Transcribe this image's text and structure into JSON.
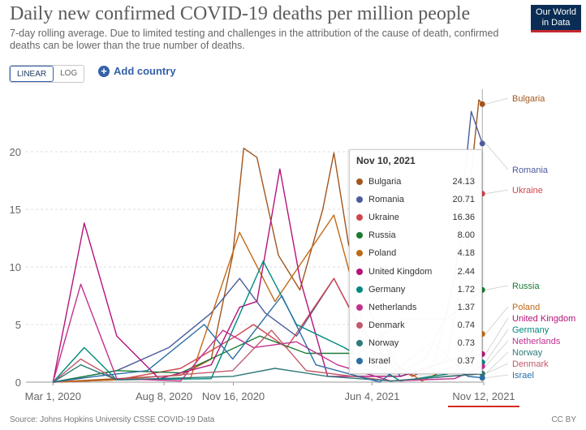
{
  "title": "Daily new confirmed COVID-19 deaths per million people",
  "subtitle": "7-day rolling average. Due to limited testing and challenges in the attribution of the cause of death, confirmed deaths can be lower than the true number of deaths.",
  "logo": {
    "line1": "Our World",
    "line2": "in Data"
  },
  "controls": {
    "linear": "LINEAR",
    "log": "LOG",
    "add_country": "Add country"
  },
  "footer": {
    "source": "Source: Johns Hopkins University CSSE COVID-19 Data",
    "license": "CC BY"
  },
  "tooltip": {
    "date": "Nov 10, 2021",
    "rows": [
      {
        "name": "Bulgaria",
        "value": "24.13",
        "color": "#a2561e"
      },
      {
        "name": "Romania",
        "value": "20.71",
        "color": "#4c5c9c"
      },
      {
        "name": "Ukraine",
        "value": "16.36",
        "color": "#d0464d"
      },
      {
        "name": "Russia",
        "value": "8.00",
        "color": "#1a7c34"
      },
      {
        "name": "Poland",
        "value": "4.18",
        "color": "#c26918"
      },
      {
        "name": "United Kingdom",
        "value": "2.44",
        "color": "#b5137a"
      },
      {
        "name": "Germany",
        "value": "1.72",
        "color": "#008a7d"
      },
      {
        "name": "Netherlands",
        "value": "1.37",
        "color": "#c2318f"
      },
      {
        "name": "Denmark",
        "value": "0.74",
        "color": "#c05a6c"
      },
      {
        "name": "Norway",
        "value": "0.73",
        "color": "#2f7a7a"
      },
      {
        "name": "Israel",
        "value": "0.37",
        "color": "#2a6fa6"
      }
    ]
  },
  "chart_data": {
    "type": "line",
    "ylim": [
      0,
      25
    ],
    "yticks": [
      0,
      5,
      10,
      15,
      20
    ],
    "xlim": [
      "2020-01-22",
      "2021-11-12"
    ],
    "xticks": [
      {
        "label": "Mar 1, 2020",
        "date": "2020-03-01"
      },
      {
        "label": "Aug 8, 2020",
        "date": "2020-08-08"
      },
      {
        "label": "Nov 16, 2020",
        "date": "2020-11-16"
      },
      {
        "label": "Jun 4, 2021",
        "date": "2021-06-04"
      },
      {
        "label": "Nov 12, 2021",
        "date": "2021-11-12"
      }
    ],
    "series": [
      {
        "name": "Bulgaria",
        "color": "#a2561e",
        "x": [
          "2020-03-01",
          "2020-06-01",
          "2020-09-01",
          "2020-10-15",
          "2020-11-15",
          "2020-12-01",
          "2020-12-20",
          "2021-01-20",
          "2021-02-20",
          "2021-03-25",
          "2021-04-10",
          "2021-05-01",
          "2021-06-01",
          "2021-07-15",
          "2021-08-20",
          "2021-09-20",
          "2021-10-20",
          "2021-11-05",
          "2021-11-10"
        ],
        "y": [
          0,
          0.3,
          0.6,
          2,
          11,
          20.3,
          19.5,
          11,
          8,
          15,
          19.9,
          12,
          6,
          1,
          2,
          6,
          15,
          24.5,
          24.13
        ]
      },
      {
        "name": "Romania",
        "color": "#4c5c9c",
        "x": [
          "2020-03-01",
          "2020-06-01",
          "2020-08-15",
          "2020-10-15",
          "2020-11-25",
          "2021-01-01",
          "2021-02-15",
          "2021-04-10",
          "2021-05-15",
          "2021-07-15",
          "2021-09-01",
          "2021-10-01",
          "2021-10-25",
          "2021-11-10"
        ],
        "y": [
          0,
          1,
          3,
          6,
          9,
          6,
          4,
          9,
          5,
          0.5,
          1.5,
          9,
          23.5,
          20.71
        ]
      },
      {
        "name": "Ukraine",
        "color": "#d0464d",
        "x": [
          "2020-03-01",
          "2020-06-01",
          "2020-09-01",
          "2020-11-20",
          "2020-12-15",
          "2021-02-01",
          "2021-04-10",
          "2021-06-01",
          "2021-08-01",
          "2021-09-20",
          "2021-10-20",
          "2021-11-10"
        ],
        "y": [
          0,
          0.2,
          1.2,
          4,
          5,
          3,
          9,
          3,
          0.5,
          2,
          12,
          16.36
        ]
      },
      {
        "name": "Russia",
        "color": "#1a7c34",
        "x": [
          "2020-03-01",
          "2020-06-01",
          "2020-09-01",
          "2020-12-24",
          "2021-03-01",
          "2021-05-15",
          "2021-07-20",
          "2021-09-20",
          "2021-11-10"
        ],
        "y": [
          0,
          1,
          0.8,
          4,
          2.5,
          2.5,
          5.5,
          5.5,
          8
        ]
      },
      {
        "name": "Poland",
        "color": "#c26918",
        "x": [
          "2020-03-01",
          "2020-06-01",
          "2020-09-15",
          "2020-11-25",
          "2021-01-15",
          "2021-04-10",
          "2021-06-01",
          "2021-08-15",
          "2021-10-20",
          "2021-11-10"
        ],
        "y": [
          0,
          0.2,
          0.3,
          13,
          7,
          14.5,
          3,
          0.1,
          2,
          4.18
        ]
      },
      {
        "name": "United Kingdom",
        "color": "#b5137a",
        "x": [
          "2020-03-01",
          "2020-04-15",
          "2020-06-01",
          "2020-08-01",
          "2020-10-15",
          "2020-11-25",
          "2020-12-20",
          "2021-01-22",
          "2021-02-20",
          "2021-04-01",
          "2021-07-15",
          "2021-10-01",
          "2021-11-10"
        ],
        "y": [
          0,
          13.8,
          4,
          0.3,
          1.5,
          6.5,
          7,
          18.5,
          9,
          0.5,
          0.5,
          2,
          2.44
        ]
      },
      {
        "name": "Germany",
        "color": "#008a7d",
        "x": [
          "2020-03-01",
          "2020-04-15",
          "2020-06-01",
          "2020-10-15",
          "2020-12-29",
          "2021-02-15",
          "2021-04-25",
          "2021-07-15",
          "2021-09-20",
          "2021-11-10"
        ],
        "y": [
          0,
          3,
          0.2,
          0.3,
          10.5,
          5,
          3,
          0.1,
          0.7,
          1.72
        ]
      },
      {
        "name": "Netherlands",
        "color": "#c2318f",
        "x": [
          "2020-03-01",
          "2020-04-10",
          "2020-06-01",
          "2020-09-01",
          "2020-11-01",
          "2020-12-15",
          "2021-02-15",
          "2021-04-15",
          "2021-07-01",
          "2021-10-01",
          "2021-11-10"
        ],
        "y": [
          0,
          8.5,
          0.3,
          0.1,
          4.5,
          3,
          3.5,
          1.5,
          0.1,
          0.3,
          1.37
        ]
      },
      {
        "name": "Denmark",
        "color": "#c05a6c",
        "x": [
          "2020-03-01",
          "2020-04-10",
          "2020-06-01",
          "2020-11-15",
          "2021-01-10",
          "2021-03-01",
          "2021-07-01",
          "2021-11-10"
        ],
        "y": [
          0,
          2,
          0.2,
          1,
          4.5,
          1,
          0.1,
          0.74
        ]
      },
      {
        "name": "Norway",
        "color": "#2f7a7a",
        "x": [
          "2020-03-01",
          "2020-04-10",
          "2020-06-01",
          "2020-11-15",
          "2021-01-15",
          "2021-04-01",
          "2021-07-01",
          "2021-11-10"
        ],
        "y": [
          0,
          1.5,
          0.2,
          0.5,
          1.2,
          0.5,
          0.1,
          0.73
        ]
      },
      {
        "name": "Israel",
        "color": "#2a6fa6",
        "x": [
          "2020-03-01",
          "2020-05-01",
          "2020-07-15",
          "2020-10-05",
          "2020-11-15",
          "2021-01-25",
          "2021-03-15",
          "2021-06-15",
          "2021-08-30",
          "2021-10-20",
          "2021-11-10"
        ],
        "y": [
          0,
          0.5,
          1,
          5,
          2,
          7.5,
          1.5,
          0,
          3.5,
          0.5,
          0.37
        ]
      }
    ]
  }
}
